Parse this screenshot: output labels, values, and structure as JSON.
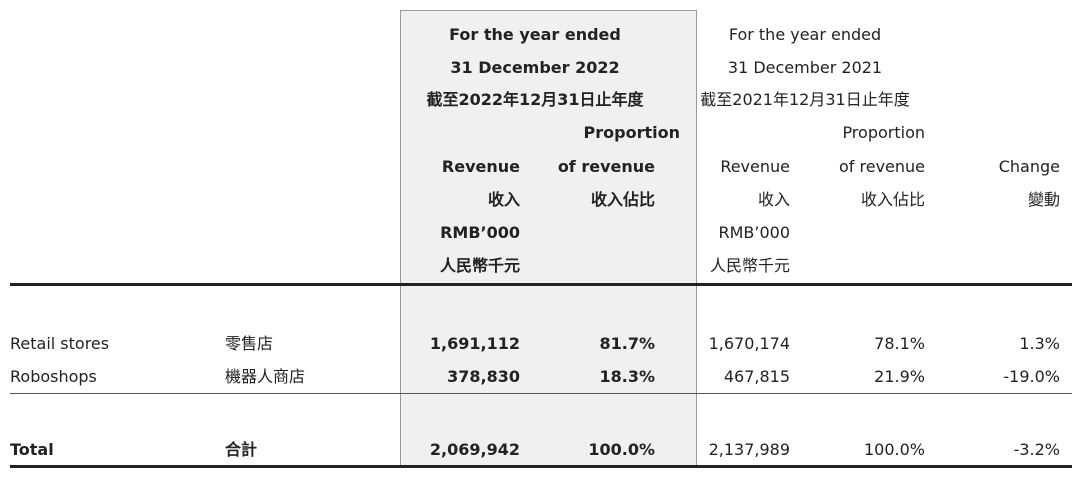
{
  "header": {
    "y2022": [
      "For the year ended",
      "31 December 2022",
      "截至2022年12月31日止年度"
    ],
    "y2021": [
      "For the year ended",
      "31 December 2021",
      "截至2021年12月31日止年度"
    ],
    "revenue": [
      "Revenue",
      "收入",
      "RMB’000",
      "人民幣千元"
    ],
    "proportion": [
      "Proportion",
      "of revenue",
      "收入佔比"
    ],
    "change": [
      "Change",
      "變動"
    ]
  },
  "rows": [
    {
      "en": "Retail stores",
      "zh": "零售店",
      "rev2022": "1,691,112",
      "prop2022": "81.7%",
      "rev2021": "1,670,174",
      "prop2021": "78.1%",
      "change": "1.3%"
    },
    {
      "en": "Roboshops",
      "zh": "機器人商店",
      "rev2022": "378,830",
      "prop2022": "18.3%",
      "rev2021": "467,815",
      "prop2021": "21.9%",
      "change": "-19.0%"
    }
  ],
  "total": {
    "en": "Total",
    "zh": "合計",
    "rev2022": "2,069,942",
    "prop2022": "100.0%",
    "rev2021": "2,137,989",
    "prop2021": "100.0%",
    "change": "-3.2%"
  }
}
